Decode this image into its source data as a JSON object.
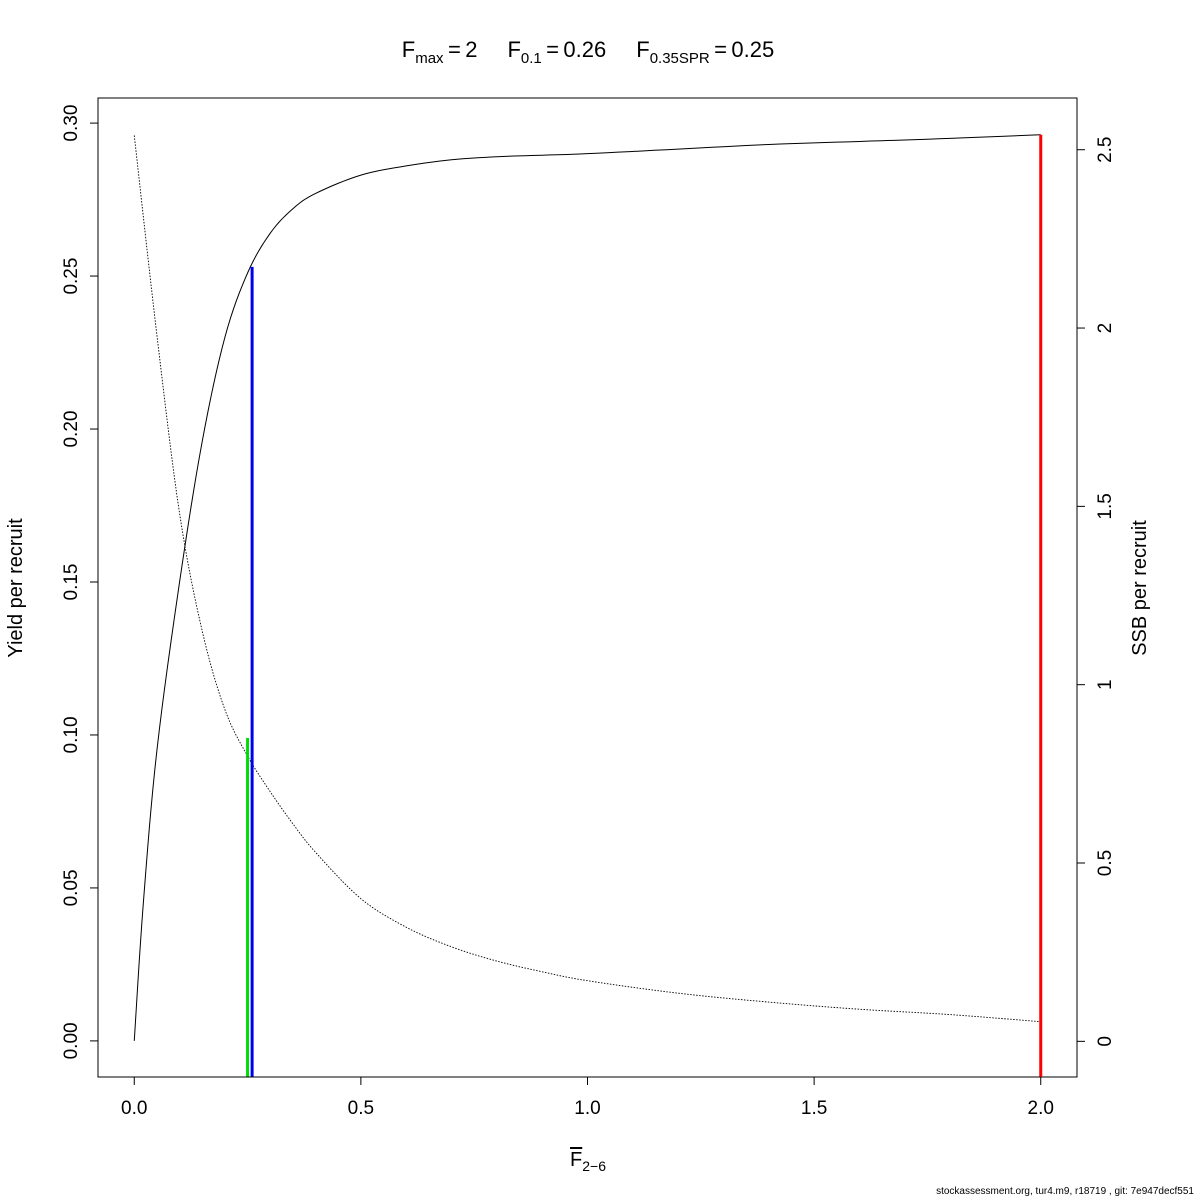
{
  "footer": "stockassessment.org, tur4.m9, r18719 , git: 7e947decf551",
  "chart_data": {
    "type": "line",
    "title_parts": [
      {
        "base": "F",
        "sub": "max",
        "value": "2"
      },
      {
        "base": "F",
        "sub": "0.1",
        "value": "0.26"
      },
      {
        "base": "F",
        "sub": "0.35SPR",
        "value": "0.25"
      }
    ],
    "xlabel_base": "F",
    "xlabel_sub": "2−6",
    "ylabel_left": "Yield per recruit",
    "ylabel_right": "SSB per recruit",
    "xlim": [
      -0.08,
      2.08
    ],
    "ylim_left": [
      -0.0118,
      0.3082
    ],
    "ylim_right": [
      -0.1,
      2.645
    ],
    "xticks": [
      "0.0",
      "0.5",
      "1.0",
      "1.5",
      "2.0"
    ],
    "yticks_left": [
      "0.00",
      "0.05",
      "0.10",
      "0.15",
      "0.20",
      "0.25",
      "0.30"
    ],
    "yticks_right": [
      "0",
      "0.5",
      "1",
      "1.5",
      "2",
      "2.5"
    ],
    "series": [
      {
        "style": "solid",
        "axis": "left",
        "x": [
          0,
          0.02,
          0.05,
          0.1,
          0.15,
          0.2,
          0.25,
          0.3,
          0.35,
          0.4,
          0.5,
          0.6,
          0.7,
          0.8,
          0.9,
          1.0,
          1.2,
          1.4,
          1.6,
          1.8,
          2.0
        ],
        "y": [
          0,
          0.045,
          0.095,
          0.15,
          0.196,
          0.23,
          0.251,
          0.264,
          0.272,
          0.277,
          0.283,
          0.286,
          0.288,
          0.289,
          0.2895,
          0.29,
          0.2915,
          0.293,
          0.294,
          0.295,
          0.2962
        ]
      },
      {
        "style": "dotted",
        "axis": "right",
        "x": [
          0,
          0.05,
          0.1,
          0.15,
          0.2,
          0.25,
          0.3,
          0.35,
          0.4,
          0.5,
          0.6,
          0.7,
          0.8,
          0.9,
          1.0,
          1.2,
          1.4,
          1.6,
          1.8,
          2.0
        ],
        "y": [
          2.54,
          1.98,
          1.48,
          1.15,
          0.93,
          0.8,
          0.7,
          0.61,
          0.53,
          0.4,
          0.32,
          0.265,
          0.225,
          0.195,
          0.17,
          0.135,
          0.11,
          0.09,
          0.075,
          0.055
        ]
      }
    ],
    "reference_lines": [
      {
        "name": "F0.35SPR",
        "x": 0.25,
        "y": 0.099,
        "color": "#00dd00"
      },
      {
        "name": "F0.1",
        "x": 0.26,
        "y": 0.253,
        "color": "#0000ee"
      },
      {
        "name": "Fmax",
        "x": 2.0,
        "y": 0.2962,
        "color": "#ff0000"
      }
    ]
  }
}
